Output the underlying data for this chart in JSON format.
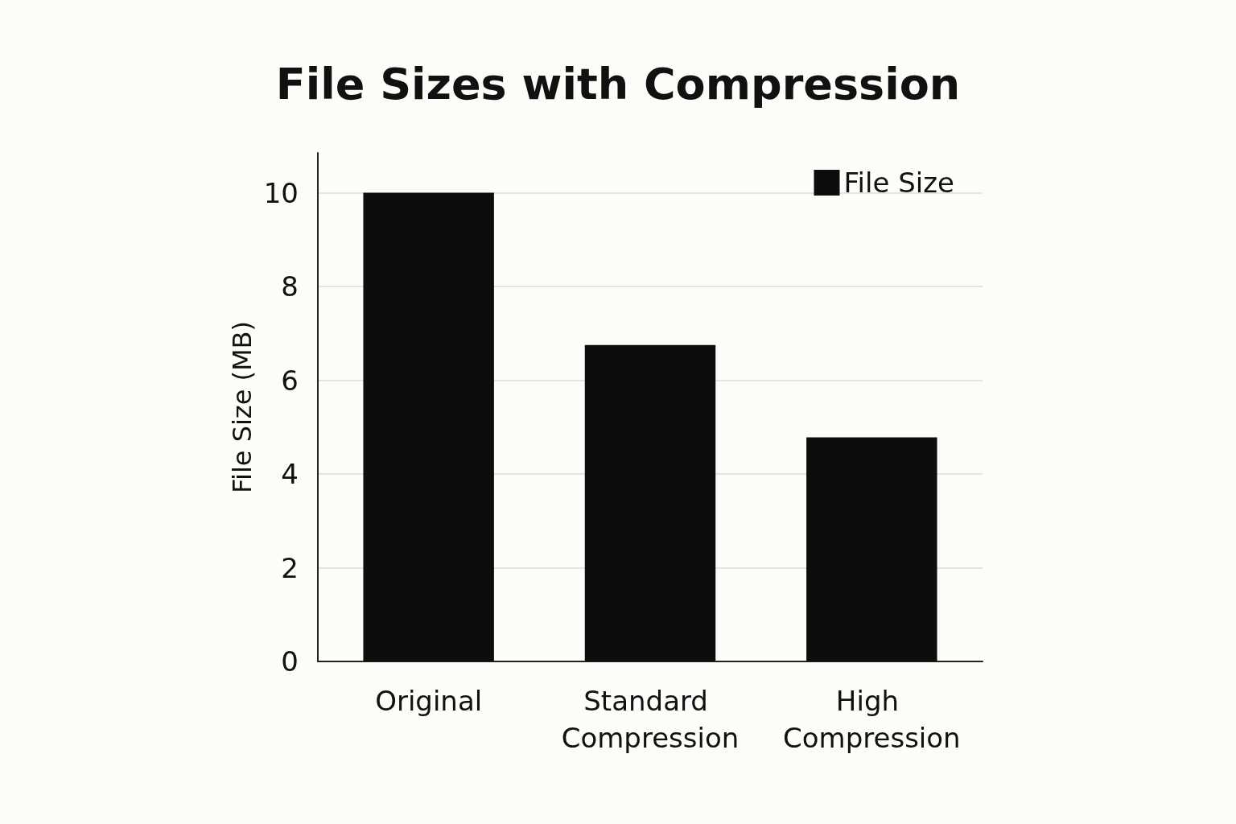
{
  "chart_data": {
    "type": "bar",
    "title": "File Sizes with Compression",
    "ylabel": "File Size (MB)",
    "categories": [
      "Original",
      "Standard Compression",
      "High Compression"
    ],
    "series": [
      {
        "name": "File Size",
        "color": "#0d0d0d",
        "values": [
          10,
          6.75,
          4.78
        ]
      }
    ],
    "ylim": [
      0,
      10.85
    ],
    "yticks": [
      0,
      2,
      4,
      6,
      8,
      10
    ],
    "grid": "y",
    "legend": "top right"
  }
}
